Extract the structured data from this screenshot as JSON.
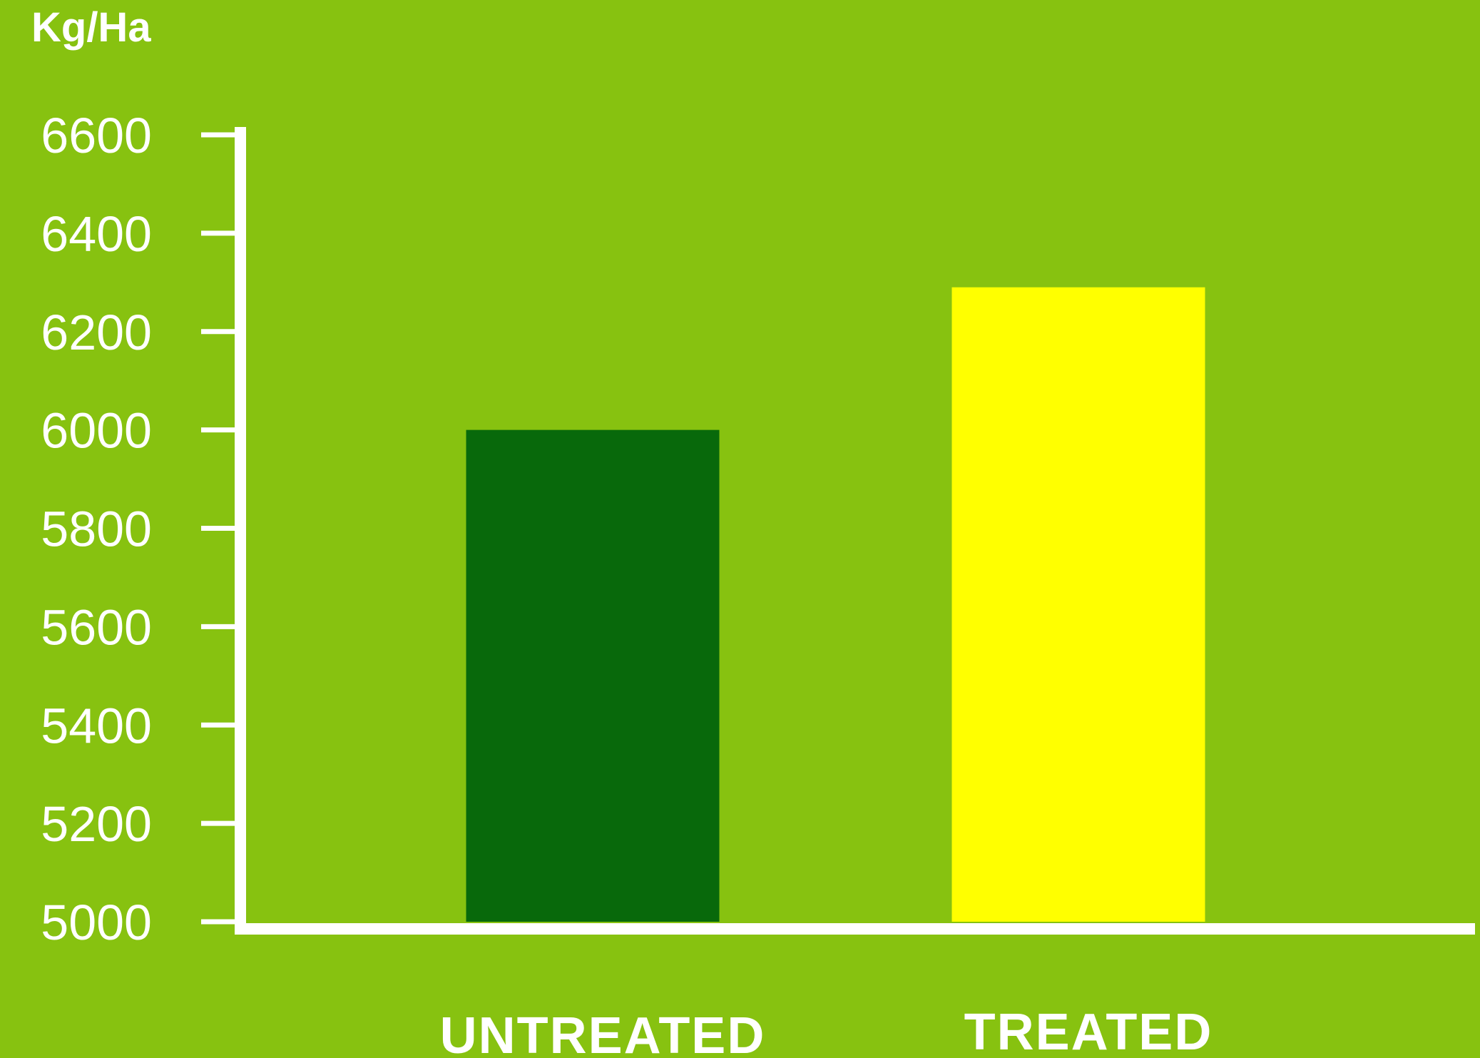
{
  "chart_data": {
    "type": "bar",
    "title": "",
    "xlabel": "",
    "ylabel": "Kg/Ha",
    "categories": [
      "UNTREATED",
      "TREATED"
    ],
    "values": [
      6000,
      6290
    ],
    "ylim": [
      5000,
      6600
    ],
    "yticks": [
      5000,
      5200,
      5400,
      5600,
      5800,
      6000,
      6200,
      6400,
      6600
    ],
    "grid": false,
    "legend": "none"
  },
  "colors": {
    "background": "#87C210",
    "axis": "#FFFFFF",
    "text": "#FFFFFF",
    "bars": [
      "#08690B",
      "#FFFF00"
    ]
  }
}
